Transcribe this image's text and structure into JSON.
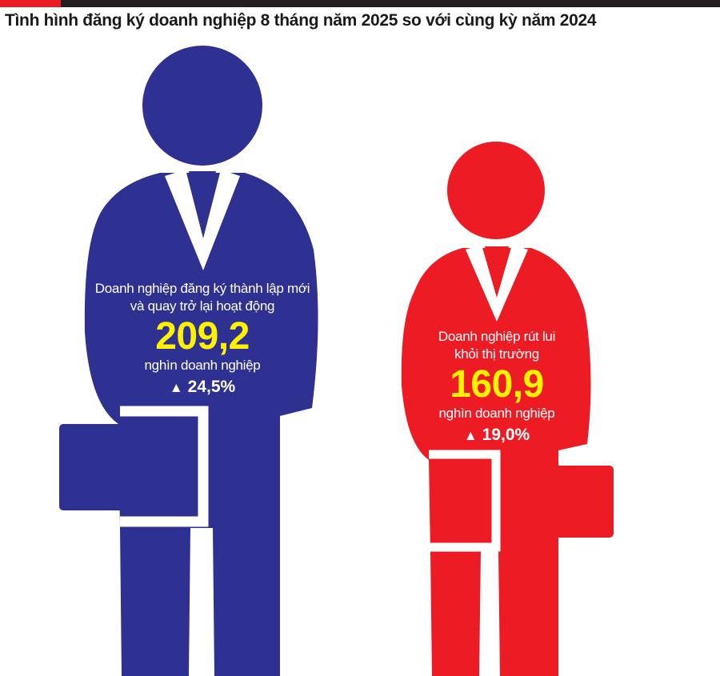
{
  "header": {
    "title": "Tình hình đăng ký doanh nghiệp 8 tháng năm 2025 so với cùng kỳ năm 2024"
  },
  "chart_data": {
    "type": "pictograph",
    "series": [
      {
        "description": [
          "Doanh nghiệp đăng ký thành lập mới",
          "và quay trở lại hoạt động"
        ],
        "value_text": "209,2",
        "value": 209.2,
        "unit": "nghìn doanh nghiệp",
        "change_text": "24,5%",
        "change_percent": 24.5,
        "direction": "up",
        "color": "#2e3192"
      },
      {
        "description": [
          "Doanh nghiệp rút lui",
          "khỏi thị trường"
        ],
        "value_text": "160,9",
        "value": 160.9,
        "unit": "nghìn doanh nghiệp",
        "change_text": "19,0%",
        "change_percent": 19.0,
        "direction": "up",
        "color": "#ed1c24"
      }
    ],
    "value_color": "#fff200",
    "arrow_icon": "triangle-up-icon",
    "arrow_glyph": "▲"
  }
}
